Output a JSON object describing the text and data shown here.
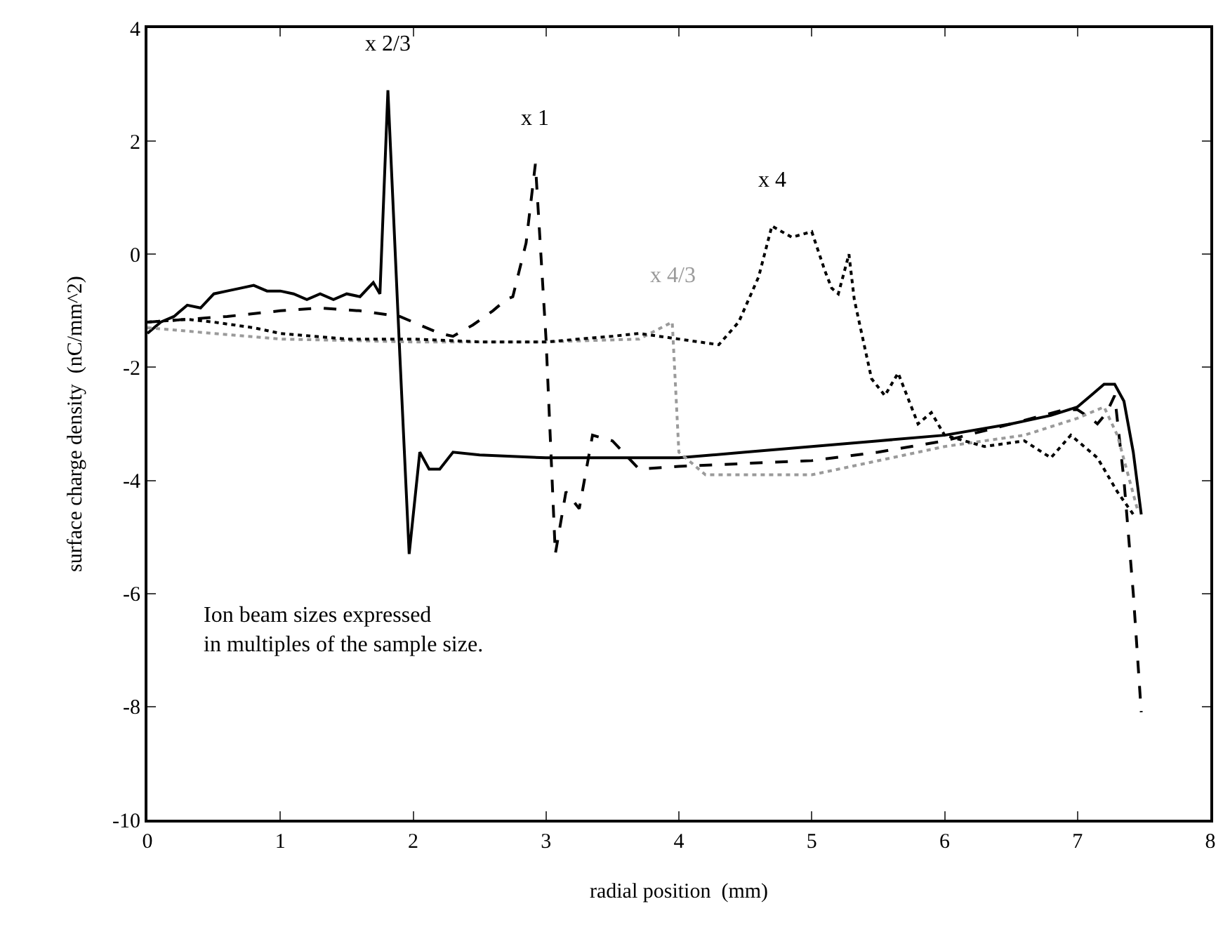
{
  "chart_data": {
    "type": "line",
    "xlabel": "radial position  (mm)",
    "ylabel": "surface charge density  (nC/mm^2)",
    "xlim": [
      0,
      8
    ],
    "ylim": [
      -10,
      4
    ],
    "xticks": [
      0,
      1,
      2,
      3,
      4,
      5,
      6,
      7,
      8
    ],
    "yticks": [
      -10,
      -8,
      -6,
      -4,
      -2,
      0,
      2,
      4
    ],
    "grid": false,
    "legend": false,
    "marker": "none",
    "series": [
      {
        "name": "x 2/3",
        "color": "#000000",
        "line_style": "solid",
        "x": [
          0,
          0.1,
          0.2,
          0.3,
          0.4,
          0.5,
          0.6,
          0.7,
          0.8,
          0.9,
          1.0,
          1.1,
          1.2,
          1.3,
          1.4,
          1.5,
          1.6,
          1.7,
          1.75,
          1.81,
          1.9,
          1.97,
          2.05,
          2.12,
          2.2,
          2.3,
          2.5,
          3,
          3.5,
          4,
          4.5,
          5,
          5.5,
          6,
          6.5,
          6.8,
          7.0,
          7.1,
          7.2,
          7.28,
          7.35,
          7.42,
          7.48
        ],
        "values": [
          -1.4,
          -1.2,
          -1.1,
          -0.9,
          -0.95,
          -0.7,
          -0.65,
          -0.6,
          -0.55,
          -0.65,
          -0.65,
          -0.7,
          -0.8,
          -0.7,
          -0.8,
          -0.7,
          -0.75,
          -0.5,
          -0.7,
          2.9,
          -1.8,
          -5.3,
          -3.5,
          -3.8,
          -3.8,
          -3.5,
          -3.55,
          -3.6,
          -3.6,
          -3.6,
          -3.5,
          -3.4,
          -3.3,
          -3.2,
          -3.0,
          -2.85,
          -2.7,
          -2.5,
          -2.3,
          -2.3,
          -2.6,
          -3.5,
          -4.6
        ]
      },
      {
        "name": "x 1",
        "color": "#000000",
        "line_style": "dashed",
        "x": [
          0,
          0.3,
          0.6,
          1.0,
          1.3,
          1.6,
          1.9,
          2.0,
          2.2,
          2.3,
          2.45,
          2.6,
          2.7,
          2.75,
          2.85,
          2.92,
          3.0,
          3.07,
          3.15,
          3.25,
          3.35,
          3.5,
          3.7,
          4,
          4.5,
          5,
          5.5,
          6,
          6.5,
          6.9,
          7.0,
          7.1,
          7.15,
          7.22,
          7.28,
          7.35,
          7.42,
          7.48
        ],
        "values": [
          -1.2,
          -1.15,
          -1.1,
          -1.0,
          -0.95,
          -1.0,
          -1.1,
          -1.2,
          -1.4,
          -1.45,
          -1.25,
          -1.0,
          -0.8,
          -0.75,
          0.2,
          1.6,
          -1.5,
          -5.3,
          -4.2,
          -4.5,
          -3.2,
          -3.3,
          -3.8,
          -3.75,
          -3.7,
          -3.65,
          -3.5,
          -3.3,
          -3.0,
          -2.75,
          -2.75,
          -2.9,
          -3.0,
          -2.8,
          -2.5,
          -4.0,
          -6.0,
          -8.1
        ]
      },
      {
        "name": "x 4/3",
        "color": "#9a9a9a",
        "line_style": "dotted",
        "x": [
          0,
          0.5,
          1,
          2,
          3,
          3.7,
          3.95,
          4.0,
          4.2,
          5,
          6,
          6.6,
          7.0,
          7.2,
          7.3,
          7.45
        ],
        "values": [
          -1.3,
          -1.4,
          -1.5,
          -1.55,
          -1.55,
          -1.5,
          -1.2,
          -3.5,
          -3.9,
          -3.9,
          -3.4,
          -3.2,
          -2.9,
          -2.7,
          -3.2,
          -4.5
        ]
      },
      {
        "name": "x 4",
        "color": "#000000",
        "line_style": "dotted",
        "x": [
          0,
          0.3,
          0.5,
          0.8,
          1.0,
          1.5,
          2.0,
          2.5,
          3.0,
          3.5,
          3.7,
          4.0,
          4.3,
          4.45,
          4.6,
          4.7,
          4.85,
          5.0,
          5.1,
          5.15,
          5.2,
          5.28,
          5.32,
          5.45,
          5.55,
          5.65,
          5.8,
          5.9,
          6.0,
          6.3,
          6.6,
          6.8,
          6.95,
          7.15,
          7.3,
          7.42
        ],
        "values": [
          -1.2,
          -1.15,
          -1.2,
          -1.3,
          -1.4,
          -1.5,
          -1.5,
          -1.55,
          -1.55,
          -1.45,
          -1.4,
          -1.5,
          -1.6,
          -1.2,
          -0.4,
          0.5,
          0.3,
          0.4,
          -0.3,
          -0.6,
          -0.7,
          0.0,
          -0.8,
          -2.2,
          -2.5,
          -2.1,
          -3.0,
          -2.8,
          -3.2,
          -3.4,
          -3.3,
          -3.6,
          -3.2,
          -3.6,
          -4.2,
          -4.6
        ]
      }
    ],
    "annotations": [
      "Ion beam sizes expressed\nin multiples of the sample size."
    ]
  }
}
